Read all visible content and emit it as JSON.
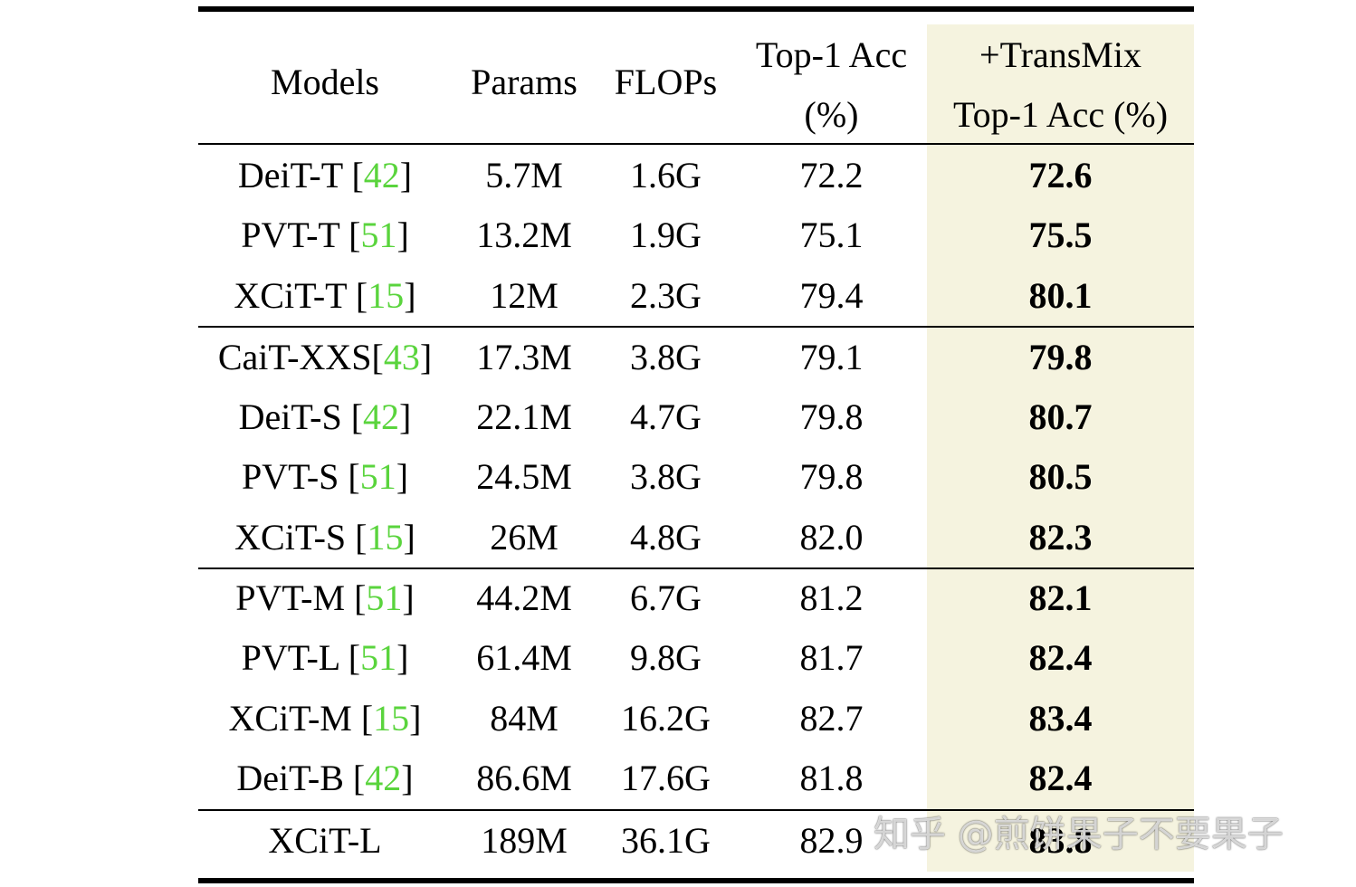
{
  "header": {
    "models": "Models",
    "params": "Params",
    "flops": "FLOPs",
    "top1_line1": "Top-1 Acc",
    "top1_line2": "(%)",
    "transmix_line1": "+TransMix",
    "transmix_line2": "Top-1 Acc (%)"
  },
  "rows": [
    {
      "model": "DeiT-T",
      "sep": " [",
      "ref": "42",
      "params": "5.7M",
      "flops": "1.6G",
      "top1": "72.2",
      "transmix": "72.6"
    },
    {
      "model": "PVT-T",
      "sep": " [",
      "ref": "51",
      "params": "13.2M",
      "flops": "1.9G",
      "top1": "75.1",
      "transmix": "75.5"
    },
    {
      "model": "XCiT-T",
      "sep": " [",
      "ref": "15",
      "params": "12M",
      "flops": "2.3G",
      "top1": "79.4",
      "transmix": "80.1"
    },
    {
      "model": "CaiT-XXS",
      "sep": "[",
      "ref": "43",
      "params": "17.3M",
      "flops": "3.8G",
      "top1": "79.1",
      "transmix": "79.8"
    },
    {
      "model": "DeiT-S",
      "sep": " [",
      "ref": "42",
      "params": "22.1M",
      "flops": "4.7G",
      "top1": "79.8",
      "transmix": "80.7"
    },
    {
      "model": "PVT-S",
      "sep": " [",
      "ref": "51",
      "params": "24.5M",
      "flops": "3.8G",
      "top1": "79.8",
      "transmix": "80.5"
    },
    {
      "model": "XCiT-S",
      "sep": " [",
      "ref": "15",
      "params": "26M",
      "flops": "4.8G",
      "top1": "82.0",
      "transmix": "82.3"
    },
    {
      "model": "PVT-M",
      "sep": " [",
      "ref": "51",
      "params": "44.2M",
      "flops": "6.7G",
      "top1": "81.2",
      "transmix": "82.1"
    },
    {
      "model": "PVT-L",
      "sep": " [",
      "ref": "51",
      "params": "61.4M",
      "flops": "9.8G",
      "top1": "81.7",
      "transmix": "82.4"
    },
    {
      "model": "XCiT-M",
      "sep": " [",
      "ref": "15",
      "params": "84M",
      "flops": "16.2G",
      "top1": "82.7",
      "transmix": "83.4"
    },
    {
      "model": "DeiT-B",
      "sep": " [",
      "ref": "42",
      "params": "86.6M",
      "flops": "17.6G",
      "top1": "81.8",
      "transmix": "82.4"
    },
    {
      "model": "XCiT-L",
      "sep": "",
      "ref": "",
      "params": "189M",
      "flops": "36.1G",
      "top1": "82.9",
      "transmix": "83.8"
    }
  ],
  "watermark": "知乎 @煎饼果子不要果子",
  "colors": {
    "reference": "#5ad43d",
    "highlight_column": "#f5f3df"
  }
}
